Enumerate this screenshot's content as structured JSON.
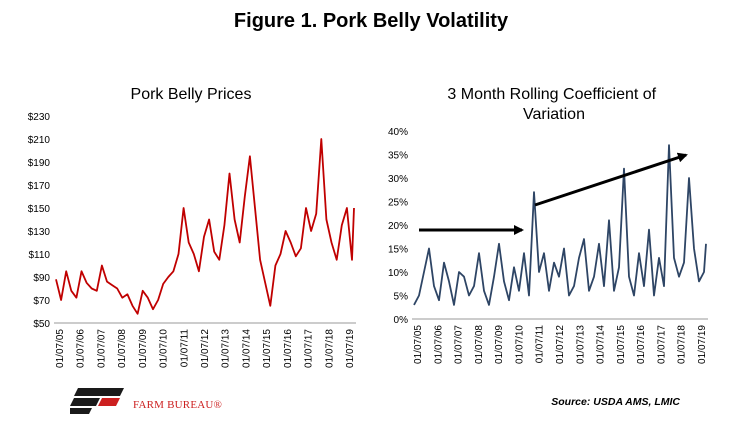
{
  "figure_title": "Figure 1. Pork Belly Volatility",
  "brand": "FARM BUREAU®",
  "source": "Source: USDA AMS, LMIC",
  "colors": {
    "left_series": "#c00000",
    "right_series": "#2e4565",
    "arrow": "#000000"
  },
  "chart_data": [
    {
      "type": "line",
      "title": "Pork Belly Prices",
      "xlabel": "",
      "ylabel": "",
      "ylim": [
        50,
        230
      ],
      "y_ticks": [
        "$50",
        "$70",
        "$90",
        "$110",
        "$130",
        "$150",
        "$170",
        "$190",
        "$210",
        "$230"
      ],
      "x_ticks": [
        "01/07/05",
        "01/07/06",
        "01/07/07",
        "01/07/08",
        "01/07/09",
        "01/07/10",
        "01/07/11",
        "01/07/12",
        "01/07/13",
        "01/07/14",
        "01/07/15",
        "01/07/16",
        "01/07/17",
        "01/07/18",
        "01/07/19"
      ],
      "series": [
        {
          "x": [
            2005.0,
            2005.25,
            2005.5,
            2005.75,
            2006.0,
            2006.25,
            2006.5,
            2006.75,
            2007.0,
            2007.25,
            2007.5,
            2007.75,
            2008.0,
            2008.25,
            2008.5,
            2008.75,
            2009.0,
            2009.25,
            2009.5,
            2009.75,
            2010.0,
            2010.25,
            2010.5,
            2010.75,
            2011.0,
            2011.25,
            2011.5,
            2011.75,
            2012.0,
            2012.25,
            2012.5,
            2012.75,
            2013.0,
            2013.25,
            2013.5,
            2013.75,
            2014.0,
            2014.25,
            2014.5,
            2014.75,
            2015.0,
            2015.25,
            2015.5,
            2015.75,
            2016.0,
            2016.25,
            2016.5,
            2016.75,
            2017.0,
            2017.25,
            2017.5,
            2017.75,
            2018.0,
            2018.25,
            2018.5,
            2018.75,
            2019.0,
            2019.25,
            2019.5,
            2019.6
          ],
          "values": [
            88,
            70,
            95,
            78,
            72,
            95,
            85,
            80,
            78,
            100,
            86,
            83,
            80,
            72,
            75,
            65,
            58,
            78,
            72,
            62,
            70,
            84,
            90,
            95,
            110,
            150,
            120,
            110,
            95,
            125,
            140,
            112,
            105,
            135,
            180,
            140,
            120,
            160,
            195,
            150,
            105,
            85,
            65,
            100,
            110,
            130,
            120,
            108,
            115,
            150,
            130,
            145,
            210,
            140,
            120,
            105,
            135,
            150,
            105,
            150
          ]
        }
      ]
    },
    {
      "type": "line",
      "title": "3 Month Rolling Coefficient of Variation",
      "xlabel": "",
      "ylabel": "",
      "ylim": [
        0,
        40
      ],
      "y_ticks": [
        "0%",
        "5%",
        "10%",
        "15%",
        "20%",
        "25%",
        "30%",
        "35%",
        "40%"
      ],
      "x_ticks": [
        "01/07/05",
        "01/07/06",
        "01/07/07",
        "01/07/08",
        "01/07/09",
        "01/07/10",
        "01/07/11",
        "01/07/12",
        "01/07/13",
        "01/07/14",
        "01/07/15",
        "01/07/16",
        "01/07/17",
        "01/07/18",
        "01/07/19"
      ],
      "series": [
        {
          "x": [
            2005.0,
            2005.25,
            2005.5,
            2005.75,
            2006.0,
            2006.25,
            2006.5,
            2006.75,
            2007.0,
            2007.25,
            2007.5,
            2007.75,
            2008.0,
            2008.25,
            2008.5,
            2008.75,
            2009.0,
            2009.25,
            2009.5,
            2009.75,
            2010.0,
            2010.25,
            2010.5,
            2010.75,
            2011.0,
            2011.25,
            2011.5,
            2011.75,
            2012.0,
            2012.25,
            2012.5,
            2012.75,
            2013.0,
            2013.25,
            2013.5,
            2013.75,
            2014.0,
            2014.25,
            2014.5,
            2014.75,
            2015.0,
            2015.25,
            2015.5,
            2015.75,
            2016.0,
            2016.25,
            2016.5,
            2016.75,
            2017.0,
            2017.25,
            2017.5,
            2017.75,
            2018.0,
            2018.25,
            2018.5,
            2018.75,
            2019.0,
            2019.25,
            2019.5,
            2019.6
          ],
          "values": [
            3,
            5,
            10,
            15,
            7,
            4,
            12,
            8,
            3,
            10,
            9,
            5,
            7,
            14,
            6,
            3,
            9,
            16,
            8,
            4,
            11,
            6,
            14,
            5,
            27,
            10,
            14,
            6,
            12,
            9,
            15,
            5,
            7,
            13,
            17,
            6,
            9,
            16,
            7,
            21,
            6,
            11,
            32,
            9,
            5,
            14,
            7,
            19,
            5,
            13,
            7,
            37,
            13,
            9,
            12,
            30,
            15,
            8,
            10,
            16
          ]
        }
      ],
      "annotations": [
        "arrow-2005-to-2010",
        "arrow-2011-to-2018"
      ]
    }
  ]
}
